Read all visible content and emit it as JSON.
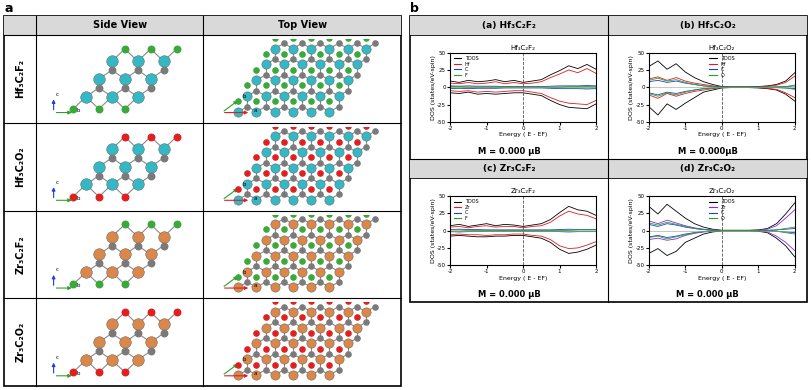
{
  "panel_a": {
    "label": "a",
    "headers": [
      "Side View",
      "Top View"
    ],
    "side_axes": [
      "c",
      "b"
    ],
    "top_axes": [
      "b",
      "a"
    ],
    "carbon_color": "#7a7a7a",
    "rows": [
      {
        "label": "Hf₃C₂F₂",
        "metal_color": "#35b8c4",
        "term_color": "#3aa83a"
      },
      {
        "label": "Hf₃C₂O₂",
        "metal_color": "#35b8c4",
        "term_color": "#e02020"
      },
      {
        "label": "Zr₃C₂F₂",
        "metal_color": "#d9874a",
        "term_color": "#3aa83a"
      },
      {
        "label": "Zr₃C₂O₂",
        "metal_color": "#d9874a",
        "term_color": "#e02020"
      }
    ]
  },
  "panel_b_label": "b",
  "chart_data": [
    {
      "type": "line",
      "header": "(a) Hf₃C₂F₂",
      "title": "Hf₃C₂F₂",
      "x_label": "Energy ( E - EF)",
      "y_label": "DOS (states/eV-spin)",
      "annotation": "M = 0.000 μB",
      "fermi_level": 0,
      "xlim": [
        -2,
        2
      ],
      "ylim": [
        -50,
        50
      ],
      "xticks": [
        -2,
        -1,
        0,
        1,
        2
      ],
      "yticks": [
        -50,
        -25,
        0,
        25,
        50
      ],
      "legend": "upper left",
      "x": [
        -2,
        -1.75,
        -1.5,
        -1.25,
        -1,
        -0.75,
        -0.5,
        -0.25,
        0,
        0.25,
        0.5,
        0.75,
        1,
        1.25,
        1.5,
        1.75,
        2
      ],
      "series": [
        {
          "name": "TDOS",
          "color": "#000000",
          "values": [
            9,
            7,
            10,
            8,
            9,
            11,
            8,
            10,
            7,
            9,
            11,
            18,
            24,
            31,
            27,
            33,
            26
          ],
          "values_down": [
            -8,
            -9,
            -7,
            -10,
            -9,
            -10,
            -9,
            -8,
            -8,
            -10,
            -12,
            -19,
            -25,
            -29,
            -30,
            -31,
            -24
          ]
        },
        {
          "name": "Hf",
          "color": "#e41a1c",
          "values": [
            6,
            5,
            7,
            5,
            6,
            8,
            5,
            7,
            5,
            6,
            8,
            14,
            19,
            25,
            21,
            27,
            20
          ],
          "values_down": [
            -5,
            -6,
            -5,
            -7,
            -6,
            -7,
            -6,
            -5,
            -5,
            -7,
            -9,
            -15,
            -20,
            -23,
            -24,
            -25,
            -19
          ]
        },
        {
          "name": "C",
          "color": "#1f3fd6",
          "values": [
            2,
            1.5,
            2,
            1.5,
            1.5,
            1.5,
            1,
            1,
            1,
            1,
            1,
            1.5,
            2,
            2,
            2,
            2.5,
            2
          ],
          "values_down": [
            -2,
            -1.5,
            -2,
            -1.5,
            -1.5,
            -1.5,
            -1,
            -1,
            -1,
            -1,
            -1,
            -1.5,
            -2,
            -2,
            -2,
            -2.5,
            -2
          ]
        },
        {
          "name": "F",
          "color": "#2ca02c",
          "values": [
            1,
            1,
            0.5,
            0.5,
            0.5,
            0.5,
            0.5,
            0.5,
            0.5,
            0.5,
            0.5,
            0.5,
            0.5,
            1,
            1,
            1,
            1
          ],
          "values_down": [
            -1,
            -1,
            -0.5,
            -0.5,
            -0.5,
            -0.5,
            -0.5,
            -0.5,
            -0.5,
            -0.5,
            -0.5,
            -0.5,
            -0.5,
            -1,
            -1,
            -1,
            -1
          ]
        }
      ]
    },
    {
      "type": "line",
      "header": "(b) Hf₃C₂O₂",
      "title": "Hf₃C₂O₂",
      "x_label": "Energy ( E - EF)",
      "y_label": "DOS (states/eV-spin)",
      "annotation": "M = 0.000μB",
      "fermi_level": 0,
      "xlim": [
        -2,
        2
      ],
      "ylim": [
        -50,
        50
      ],
      "xticks": [
        -2,
        -1,
        0,
        1,
        2
      ],
      "yticks": [
        -50,
        -25,
        0,
        25,
        50
      ],
      "legend": "upper center",
      "x": [
        -2,
        -1.75,
        -1.5,
        -1.25,
        -1,
        -0.75,
        -0.5,
        -0.25,
        0,
        0.25,
        0.5,
        0.75,
        1,
        1.25,
        1.5,
        1.75,
        2
      ],
      "series": [
        {
          "name": "TDOS",
          "color": "#000000",
          "values": [
            30,
            38,
            26,
            34,
            22,
            14,
            8,
            4,
            1,
            0.5,
            0.5,
            0.5,
            1,
            2,
            4,
            9,
            21
          ],
          "values_down": [
            -28,
            -40,
            -24,
            -32,
            -23,
            -15,
            -7,
            -4,
            -1,
            -0.5,
            -0.5,
            -0.5,
            -1,
            -2,
            -4,
            -10,
            -20
          ]
        },
        {
          "name": "Hf",
          "color": "#e41a1c",
          "values": [
            12,
            15,
            10,
            14,
            9,
            6,
            4,
            2,
            0.5,
            0.3,
            0.3,
            0.3,
            0.5,
            1.5,
            3,
            7,
            16
          ],
          "values_down": [
            -11,
            -16,
            -9,
            -13,
            -9,
            -6,
            -4,
            -2,
            -0.5,
            -0.3,
            -0.3,
            -0.3,
            -0.5,
            -1.5,
            -3,
            -8,
            -15
          ]
        },
        {
          "name": "C",
          "color": "#1f3fd6",
          "values": [
            8,
            10,
            7,
            9,
            6,
            4,
            2,
            1,
            0.3,
            0.2,
            0.2,
            0.2,
            0.3,
            0.3,
            0.5,
            1,
            2
          ],
          "values_down": [
            -8,
            -11,
            -7,
            -9,
            -6,
            -4,
            -2,
            -1,
            -0.3,
            -0.2,
            -0.2,
            -0.2,
            -0.3,
            -0.3,
            -0.5,
            -1,
            -2
          ]
        },
        {
          "name": "O",
          "color": "#2ca02c",
          "values": [
            10,
            13,
            9,
            11,
            7,
            4,
            2,
            1,
            0.2,
            0.1,
            0.1,
            0.1,
            0.2,
            0.3,
            0.5,
            1,
            3
          ],
          "values_down": [
            -9,
            -13,
            -8,
            -11,
            -7,
            -4,
            -2,
            -1,
            -0.2,
            -0.1,
            -0.1,
            -0.1,
            -0.2,
            -0.3,
            -0.5,
            -1,
            -3
          ]
        }
      ]
    },
    {
      "type": "line",
      "header": "(c) Zr₃C₂F₂",
      "title": "Zr₃C₂F₂",
      "x_label": "Energy ( E - EF)",
      "y_label": "DOS (states/eV-spin)",
      "annotation": "M = 0.000 μB",
      "fermi_level": 0,
      "xlim": [
        -2,
        2
      ],
      "ylim": [
        -50,
        50
      ],
      "xticks": [
        -2,
        -1,
        0,
        1,
        2
      ],
      "yticks": [
        -50,
        -25,
        0,
        25,
        50
      ],
      "legend": "upper left",
      "x": [
        -2,
        -1.75,
        -1.5,
        -1.25,
        -1,
        -0.75,
        -0.5,
        -0.25,
        0,
        0.25,
        0.5,
        0.75,
        1,
        1.25,
        1.5,
        1.75,
        2
      ],
      "series": [
        {
          "name": "TDOS",
          "color": "#000000",
          "values": [
            7,
            9,
            6,
            8,
            10,
            7,
            9,
            8,
            6,
            8,
            10,
            16,
            26,
            35,
            30,
            28,
            22
          ],
          "values_down": [
            -8,
            -7,
            -8,
            -9,
            -9,
            -8,
            -8,
            -7,
            -7,
            -9,
            -11,
            -17,
            -27,
            -33,
            -31,
            -27,
            -21
          ]
        },
        {
          "name": "Zr",
          "color": "#e41a1c",
          "values": [
            5,
            6,
            4,
            6,
            7,
            5,
            6,
            6,
            4,
            6,
            7,
            12,
            21,
            28,
            24,
            22,
            17
          ],
          "values_down": [
            -6,
            -5,
            -6,
            -6,
            -7,
            -6,
            -6,
            -5,
            -5,
            -7,
            -8,
            -13,
            -22,
            -26,
            -25,
            -21,
            -16
          ]
        },
        {
          "name": "C",
          "color": "#1f3fd6",
          "values": [
            1.5,
            2,
            1.5,
            1.5,
            1,
            1,
            1,
            1,
            1,
            1,
            1,
            1,
            1.5,
            2,
            1.5,
            1.5,
            1.5
          ],
          "values_down": [
            -1.5,
            -2,
            -1.5,
            -1.5,
            -1,
            -1,
            -1,
            -1,
            -1,
            -1,
            -1,
            -1,
            -1.5,
            -2,
            -1.5,
            -1.5,
            -1.5
          ]
        },
        {
          "name": "F",
          "color": "#2ca02c",
          "values": [
            1,
            1,
            0.5,
            0.5,
            0.5,
            0.5,
            0.5,
            0.5,
            0.5,
            0.5,
            0.5,
            0.5,
            0.5,
            0.5,
            1,
            1,
            1
          ],
          "values_down": [
            -1,
            -1,
            -0.5,
            -0.5,
            -0.5,
            -0.5,
            -0.5,
            -0.5,
            -0.5,
            -0.5,
            -0.5,
            -0.5,
            -0.5,
            -0.5,
            -1,
            -1,
            -1
          ]
        }
      ]
    },
    {
      "type": "line",
      "header": "(d) Zr₃C₂O₂",
      "title": "Zr₃C₂O₂",
      "x_label": "Energy ( E - EF)",
      "y_label": "DOS (states/eV-spin)",
      "annotation": "M = 0.000 μB",
      "fermi_level": 0,
      "xlim": [
        -2,
        2
      ],
      "ylim": [
        -50,
        50
      ],
      "xticks": [
        -2,
        -1,
        0,
        1,
        2
      ],
      "yticks": [
        -50,
        -25,
        0,
        25,
        50
      ],
      "legend": "upper center",
      "x": [
        -2,
        -1.75,
        -1.5,
        -1.25,
        -1,
        -0.75,
        -0.5,
        -0.25,
        0,
        0.25,
        0.5,
        0.75,
        1,
        1.25,
        1.5,
        1.75,
        2
      ],
      "series": [
        {
          "name": "TDOS",
          "color": "#000000",
          "values": [
            35,
            24,
            38,
            28,
            18,
            10,
            5,
            2,
            0.5,
            0.5,
            0.5,
            0.5,
            1,
            3,
            10,
            24,
            40
          ],
          "values_down": [
            -33,
            -26,
            -36,
            -30,
            -17,
            -11,
            -5,
            -2,
            -0.5,
            -0.5,
            -0.5,
            -0.5,
            -1,
            -3,
            -11,
            -22,
            -38
          ]
        },
        {
          "name": "Zr",
          "color": "#8a2be2",
          "values": [
            14,
            10,
            15,
            11,
            7,
            4,
            2,
            1,
            0.2,
            0.2,
            0.2,
            0.2,
            0.5,
            2,
            7,
            18,
            30
          ],
          "values_down": [
            -13,
            -11,
            -14,
            -12,
            -7,
            -4,
            -2,
            -1,
            -0.2,
            -0.2,
            -0.2,
            -0.2,
            -0.5,
            -2,
            -8,
            -17,
            -29
          ]
        },
        {
          "name": "C",
          "color": "#1f3fd6",
          "values": [
            9,
            6,
            10,
            8,
            5,
            3,
            1.5,
            0.5,
            0.1,
            0.1,
            0.1,
            0.1,
            0.2,
            0.3,
            1,
            2,
            3
          ],
          "values_down": [
            -9,
            -7,
            -10,
            -8,
            -5,
            -3,
            -1.5,
            -0.5,
            -0.1,
            -0.1,
            -0.1,
            -0.1,
            -0.2,
            -0.3,
            -1,
            -2,
            -3
          ]
        },
        {
          "name": "O",
          "color": "#2ca02c",
          "values": [
            11,
            8,
            12,
            9,
            6,
            3,
            1.5,
            0.5,
            0.1,
            0.1,
            0.1,
            0.1,
            0.2,
            0.3,
            1,
            3,
            5
          ],
          "values_down": [
            -10,
            -8,
            -12,
            -9,
            -6,
            -3,
            -1.5,
            -0.5,
            -0.1,
            -0.1,
            -0.1,
            -0.1,
            -0.2,
            -0.3,
            -1,
            -3,
            -5
          ]
        }
      ]
    }
  ]
}
